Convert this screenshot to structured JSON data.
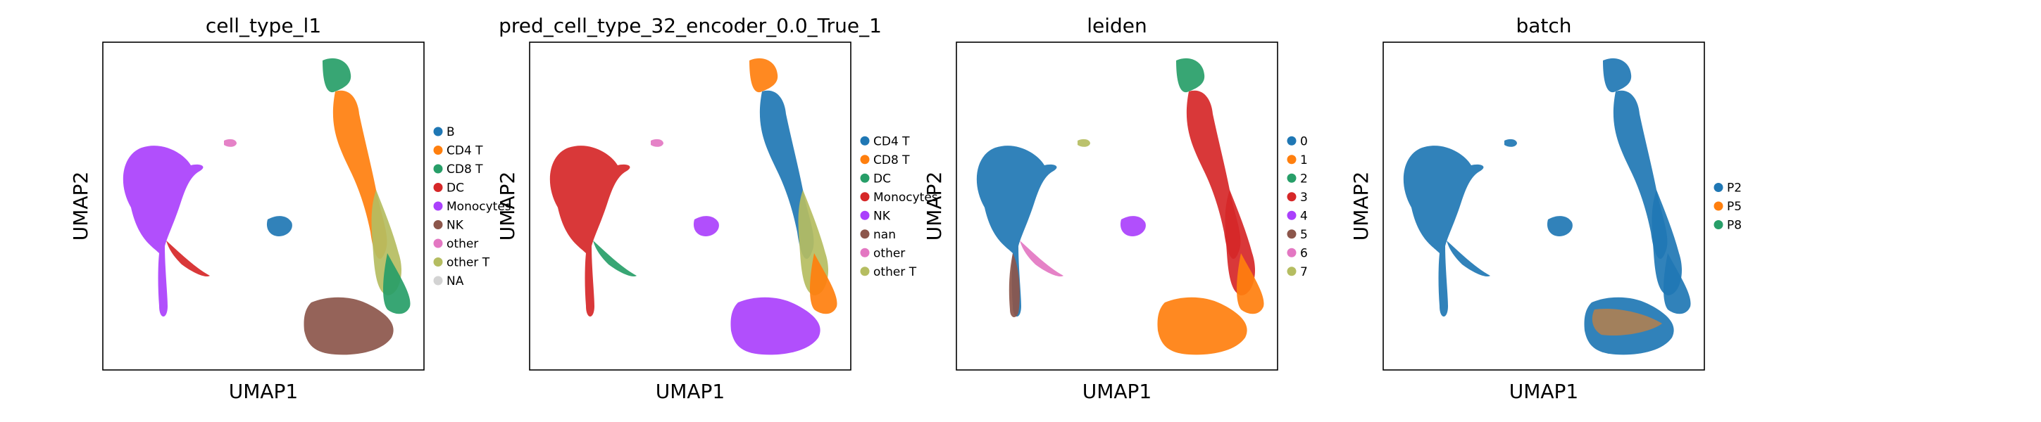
{
  "chart_data": [
    {
      "type": "scatter",
      "title": "cell_type_l1",
      "xlabel": "UMAP1",
      "ylabel": "UMAP2",
      "legend_position": "right",
      "legend": [
        {
          "label": "B",
          "color": "#1f77b4"
        },
        {
          "label": "CD4 T",
          "color": "#ff7f0e"
        },
        {
          "label": "CD8 T",
          "color": "#279e68"
        },
        {
          "label": "DC",
          "color": "#d62728"
        },
        {
          "label": "Monocytes",
          "color": "#aa40fc"
        },
        {
          "label": "NK",
          "color": "#8c564b"
        },
        {
          "label": "other",
          "color": "#e377c2"
        },
        {
          "label": "other T",
          "color": "#b5bd61"
        },
        {
          "label": "NA",
          "color": "#d3d3d3"
        }
      ],
      "clusters": [
        {
          "label": "Monocytes",
          "color": "#aa40fc",
          "shape": "mono"
        },
        {
          "label": "DC",
          "color": "#d62728",
          "shape": "tail"
        },
        {
          "label": "other",
          "color": "#e377c2",
          "shape": "small"
        },
        {
          "label": "B",
          "color": "#1f77b4",
          "shape": "b"
        },
        {
          "label": "CD8 T",
          "color": "#279e68",
          "shape": "arc_top"
        },
        {
          "label": "CD4 T",
          "color": "#ff7f0e",
          "shape": "arc_mid"
        },
        {
          "label": "other T",
          "color": "#b5bd61",
          "shape": "arc_low"
        },
        {
          "label": "CD8 T",
          "color": "#279e68",
          "shape": "arc_low2"
        },
        {
          "label": "NK",
          "color": "#8c564b",
          "shape": "bottom"
        }
      ]
    },
    {
      "type": "scatter",
      "title": "pred_cell_type_32_encoder_0.0_True_1",
      "xlabel": "UMAP1",
      "ylabel": "UMAP2",
      "legend_position": "right",
      "legend": [
        {
          "label": "CD4 T",
          "color": "#1f77b4"
        },
        {
          "label": "CD8 T",
          "color": "#ff7f0e"
        },
        {
          "label": "DC",
          "color": "#279e68"
        },
        {
          "label": "Monocytes",
          "color": "#d62728"
        },
        {
          "label": "NK",
          "color": "#aa40fc"
        },
        {
          "label": "nan",
          "color": "#8c564b"
        },
        {
          "label": "other",
          "color": "#e377c2"
        },
        {
          "label": "other T",
          "color": "#b5bd61"
        }
      ],
      "clusters": [
        {
          "label": "Monocytes",
          "color": "#d62728",
          "shape": "mono"
        },
        {
          "label": "DC",
          "color": "#279e68",
          "shape": "tail"
        },
        {
          "label": "other",
          "color": "#e377c2",
          "shape": "small"
        },
        {
          "label": "NK",
          "color": "#aa40fc",
          "shape": "b"
        },
        {
          "label": "CD8 T",
          "color": "#ff7f0e",
          "shape": "arc_top"
        },
        {
          "label": "CD4 T",
          "color": "#1f77b4",
          "shape": "arc_mid"
        },
        {
          "label": "other T",
          "color": "#b5bd61",
          "shape": "arc_low"
        },
        {
          "label": "CD8 T",
          "color": "#ff7f0e",
          "shape": "arc_low2"
        },
        {
          "label": "NK",
          "color": "#aa40fc",
          "shape": "bottom"
        }
      ]
    },
    {
      "type": "scatter",
      "title": "leiden",
      "xlabel": "UMAP1",
      "ylabel": "UMAP2",
      "legend_position": "right",
      "legend": [
        {
          "label": "0",
          "color": "#1f77b4"
        },
        {
          "label": "1",
          "color": "#ff7f0e"
        },
        {
          "label": "2",
          "color": "#279e68"
        },
        {
          "label": "3",
          "color": "#d62728"
        },
        {
          "label": "4",
          "color": "#aa40fc"
        },
        {
          "label": "5",
          "color": "#8c564b"
        },
        {
          "label": "6",
          "color": "#e377c2"
        },
        {
          "label": "7",
          "color": "#b5bd61"
        }
      ],
      "clusters": [
        {
          "label": "0",
          "color": "#1f77b4",
          "shape": "mono"
        },
        {
          "label": "6",
          "color": "#e377c2",
          "shape": "tail"
        },
        {
          "label": "5",
          "color": "#8c564b",
          "shape": "stem"
        },
        {
          "label": "7",
          "color": "#b5bd61",
          "shape": "small"
        },
        {
          "label": "4",
          "color": "#aa40fc",
          "shape": "b"
        },
        {
          "label": "2",
          "color": "#279e68",
          "shape": "arc_top"
        },
        {
          "label": "3",
          "color": "#d62728",
          "shape": "arc_mid"
        },
        {
          "label": "3",
          "color": "#d62728",
          "shape": "arc_low"
        },
        {
          "label": "1",
          "color": "#ff7f0e",
          "shape": "arc_low2"
        },
        {
          "label": "1",
          "color": "#ff7f0e",
          "shape": "bottom"
        }
      ]
    },
    {
      "type": "scatter",
      "title": "batch",
      "xlabel": "UMAP1",
      "ylabel": "UMAP2",
      "legend_position": "right",
      "legend": [
        {
          "label": "P2",
          "color": "#1f77b4"
        },
        {
          "label": "P5",
          "color": "#ff7f0e"
        },
        {
          "label": "P8",
          "color": "#279e68"
        }
      ],
      "clusters": [
        {
          "label": "P2",
          "color": "#1f77b4",
          "shape": "mono"
        },
        {
          "label": "P2",
          "color": "#1f77b4",
          "shape": "tail"
        },
        {
          "label": "P2",
          "color": "#1f77b4",
          "shape": "small"
        },
        {
          "label": "P2",
          "color": "#1f77b4",
          "shape": "b"
        },
        {
          "label": "P2",
          "color": "#1f77b4",
          "shape": "arc_top"
        },
        {
          "label": "P2",
          "color": "#1f77b4",
          "shape": "arc_mid"
        },
        {
          "label": "P2",
          "color": "#1f77b4",
          "shape": "arc_low"
        },
        {
          "label": "P2",
          "color": "#1f77b4",
          "shape": "arc_low2"
        },
        {
          "label": "P2",
          "color": "#1f77b4",
          "shape": "bottom"
        },
        {
          "label": "P5",
          "color": "#ff7f0e",
          "shape": "speckle"
        }
      ]
    }
  ]
}
